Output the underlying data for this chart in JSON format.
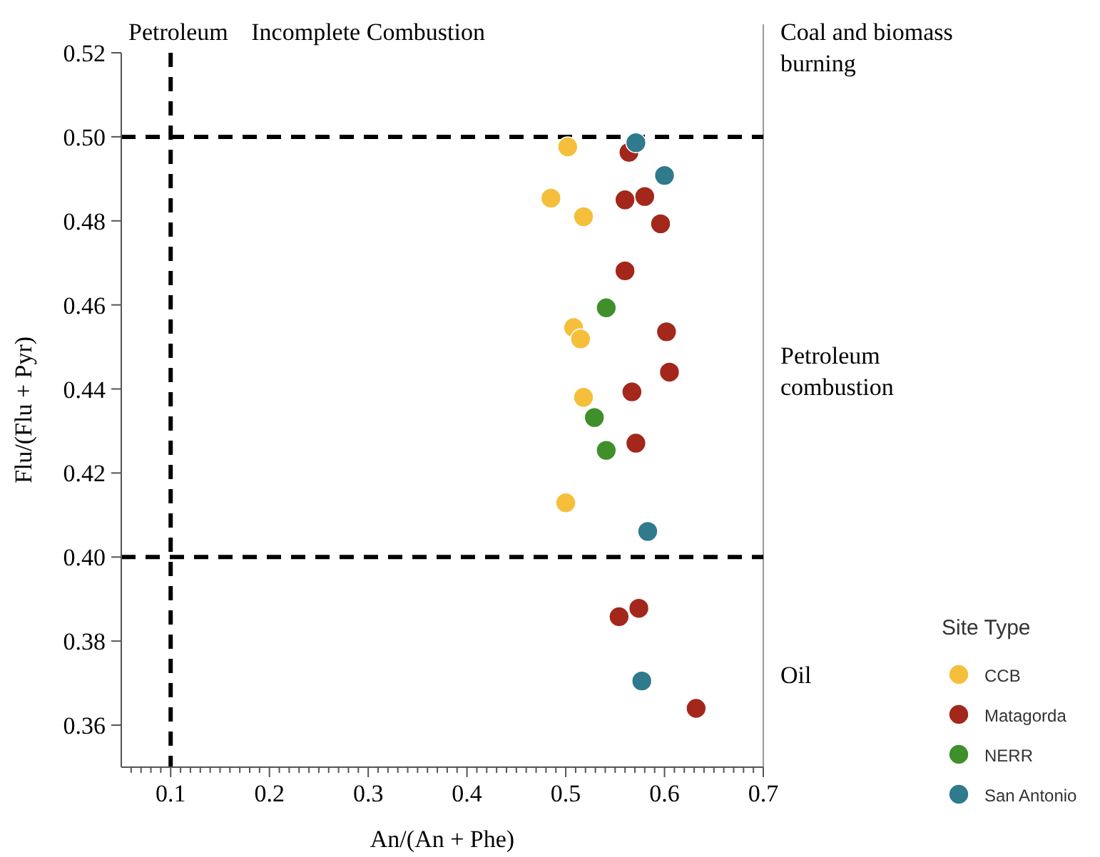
{
  "chart_data": {
    "type": "scatter",
    "xlabel": "An/(An + Phe)",
    "ylabel": "Flu/(Flu + Pyr)",
    "legend_title": "Site Type",
    "legend": "right",
    "marker": "circle",
    "grid": false,
    "xlim": [
      0.05,
      0.7
    ],
    "ylim": [
      0.35,
      0.52
    ],
    "xticks": [
      {
        "value": 0.06,
        "label": null
      },
      {
        "value": 0.07,
        "label": null
      },
      {
        "value": 0.08,
        "label": null
      },
      {
        "value": 0.09,
        "label": null
      },
      0.1,
      {
        "value": 0.11,
        "label": null
      },
      {
        "value": 0.12,
        "label": null
      },
      {
        "value": 0.13,
        "label": null
      },
      {
        "value": 0.14,
        "label": null
      },
      {
        "value": 0.15,
        "label": null
      },
      {
        "value": 0.16,
        "label": null
      },
      {
        "value": 0.17,
        "label": null
      },
      {
        "value": 0.18,
        "label": null
      },
      {
        "value": 0.19,
        "label": null
      },
      0.2,
      {
        "value": 0.21,
        "label": null
      },
      {
        "value": 0.22,
        "label": null
      },
      {
        "value": 0.23,
        "label": null
      },
      {
        "value": 0.24,
        "label": null
      },
      {
        "value": 0.25,
        "label": null
      },
      {
        "value": 0.26,
        "label": null
      },
      {
        "value": 0.27,
        "label": null
      },
      {
        "value": 0.28,
        "label": null
      },
      {
        "value": 0.29,
        "label": null
      },
      0.3,
      {
        "value": 0.31,
        "label": null
      },
      {
        "value": 0.32,
        "label": null
      },
      {
        "value": 0.33,
        "label": null
      },
      {
        "value": 0.34,
        "label": null
      },
      {
        "value": 0.35,
        "label": null
      },
      {
        "value": 0.36,
        "label": null
      },
      {
        "value": 0.37,
        "label": null
      },
      {
        "value": 0.38,
        "label": null
      },
      {
        "value": 0.39,
        "label": null
      },
      0.4,
      {
        "value": 0.41,
        "label": null
      },
      {
        "value": 0.42,
        "label": null
      },
      {
        "value": 0.43,
        "label": null
      },
      {
        "value": 0.44,
        "label": null
      },
      {
        "value": 0.45,
        "label": null
      },
      {
        "value": 0.46,
        "label": null
      },
      {
        "value": 0.47,
        "label": null
      },
      {
        "value": 0.48,
        "label": null
      },
      {
        "value": 0.49,
        "label": null
      },
      0.5,
      {
        "value": 0.51,
        "label": null
      },
      {
        "value": 0.52,
        "label": null
      },
      {
        "value": 0.53,
        "label": null
      },
      {
        "value": 0.54,
        "label": null
      },
      {
        "value": 0.55,
        "label": null
      },
      {
        "value": 0.56,
        "label": null
      },
      {
        "value": 0.57,
        "label": null
      },
      {
        "value": 0.58,
        "label": null
      },
      {
        "value": 0.59,
        "label": null
      },
      0.6,
      {
        "value": 0.61,
        "label": null
      },
      {
        "value": 0.62,
        "label": null
      },
      {
        "value": 0.63,
        "label": null
      },
      {
        "value": 0.64,
        "label": null
      },
      {
        "value": 0.65,
        "label": null
      },
      {
        "value": 0.66,
        "label": null
      },
      {
        "value": 0.67,
        "label": null
      },
      {
        "value": 0.68,
        "label": null
      },
      {
        "value": 0.69,
        "label": null
      },
      0.7
    ],
    "yticks": [
      {
        "value": 0.36,
        "label": "0.36"
      },
      {
        "value": 0.38,
        "label": "0.38"
      },
      {
        "value": 0.4,
        "label": "0.40"
      },
      {
        "value": 0.42,
        "label": "0.42"
      },
      {
        "value": 0.44,
        "label": "0.44"
      },
      {
        "value": 0.46,
        "label": "0.46"
      },
      {
        "value": 0.48,
        "label": "0.48"
      },
      {
        "value": 0.5,
        "label": "0.50"
      },
      {
        "value": 0.52,
        "label": "0.52"
      }
    ],
    "ref_lines": [
      {
        "axis": "y",
        "value": 0.5,
        "color": "#000000",
        "line_style": "dashed"
      },
      {
        "axis": "y",
        "value": 0.4,
        "color": "#000000",
        "line_style": "dashed"
      },
      {
        "axis": "x",
        "value": 0.1,
        "color": "#000000",
        "line_style": "dashed"
      }
    ],
    "annotations": [
      "Petroleum",
      "Incomplete Combustion",
      "Coal and biomass burning",
      "Petroleum combustion",
      "Oil"
    ],
    "series": [
      {
        "name": "CCB",
        "color": "#f5bf3c",
        "x": [
          0.502,
          0.485,
          0.518,
          0.508,
          0.515,
          0.518,
          0.5
        ],
        "values": [
          0.4976,
          0.4854,
          0.481,
          0.4546,
          0.4519,
          0.438,
          0.4129
        ]
      },
      {
        "name": "Matagorda",
        "color": "#a3271b",
        "x": [
          0.564,
          0.56,
          0.58,
          0.596,
          0.56,
          0.602,
          0.605,
          0.567,
          0.571,
          0.554,
          0.574,
          0.632
        ],
        "values": [
          0.4963,
          0.485,
          0.4858,
          0.4793,
          0.4681,
          0.4536,
          0.444,
          0.4393,
          0.4271,
          0.3858,
          0.3878,
          0.364
        ]
      },
      {
        "name": "NERR",
        "color": "#3f8f2b",
        "x": [
          0.541,
          0.529,
          0.541
        ],
        "values": [
          0.4593,
          0.4332,
          0.4254
        ]
      },
      {
        "name": "San Antonio",
        "color": "#2f7a8c",
        "x": [
          0.571,
          0.6,
          0.583,
          0.577
        ],
        "values": [
          0.4986,
          0.4908,
          0.4061,
          0.3705
        ]
      }
    ]
  }
}
